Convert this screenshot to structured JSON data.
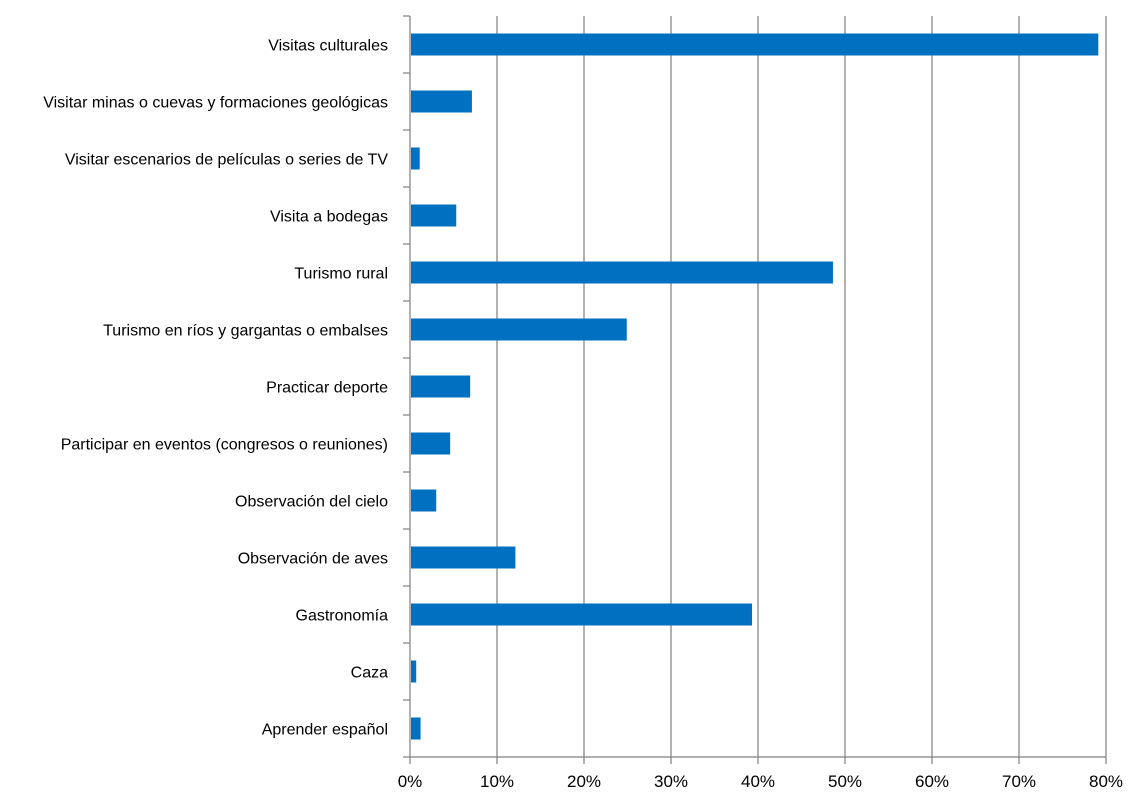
{
  "chart_data": {
    "type": "bar",
    "orientation": "horizontal",
    "title": "",
    "xlabel": "",
    "ylabel": "",
    "categories": [
      "Visitas culturales",
      "Visitar minas o cuevas y formaciones geológicas",
      "Visitar escenarios de películas o series de TV",
      "Visita a bodegas",
      "Turismo rural",
      "Turismo en ríos y gargantas o embalses",
      "Practicar deporte",
      "Participar en eventos (congresos o reuniones)",
      "Observación del cielo",
      "Observación de aves",
      "Gastronomía",
      "Caza",
      "Aprender español"
    ],
    "values": [
      0.79,
      0.07,
      0.01,
      0.052,
      0.485,
      0.248,
      0.068,
      0.045,
      0.029,
      0.12,
      0.392,
      0.006,
      0.011
    ],
    "xlim": [
      0,
      0.8
    ],
    "x_ticks": [
      0,
      0.1,
      0.2,
      0.3,
      0.4,
      0.5,
      0.6,
      0.7,
      0.8
    ],
    "x_tick_labels": [
      "0%",
      "10%",
      "20%",
      "30%",
      "40%",
      "50%",
      "60%",
      "70%",
      "80%"
    ],
    "grid": "vertical",
    "legend": "none",
    "bar_color": "#0070C0",
    "axis_color": "#808080",
    "grid_color": "#808080"
  }
}
